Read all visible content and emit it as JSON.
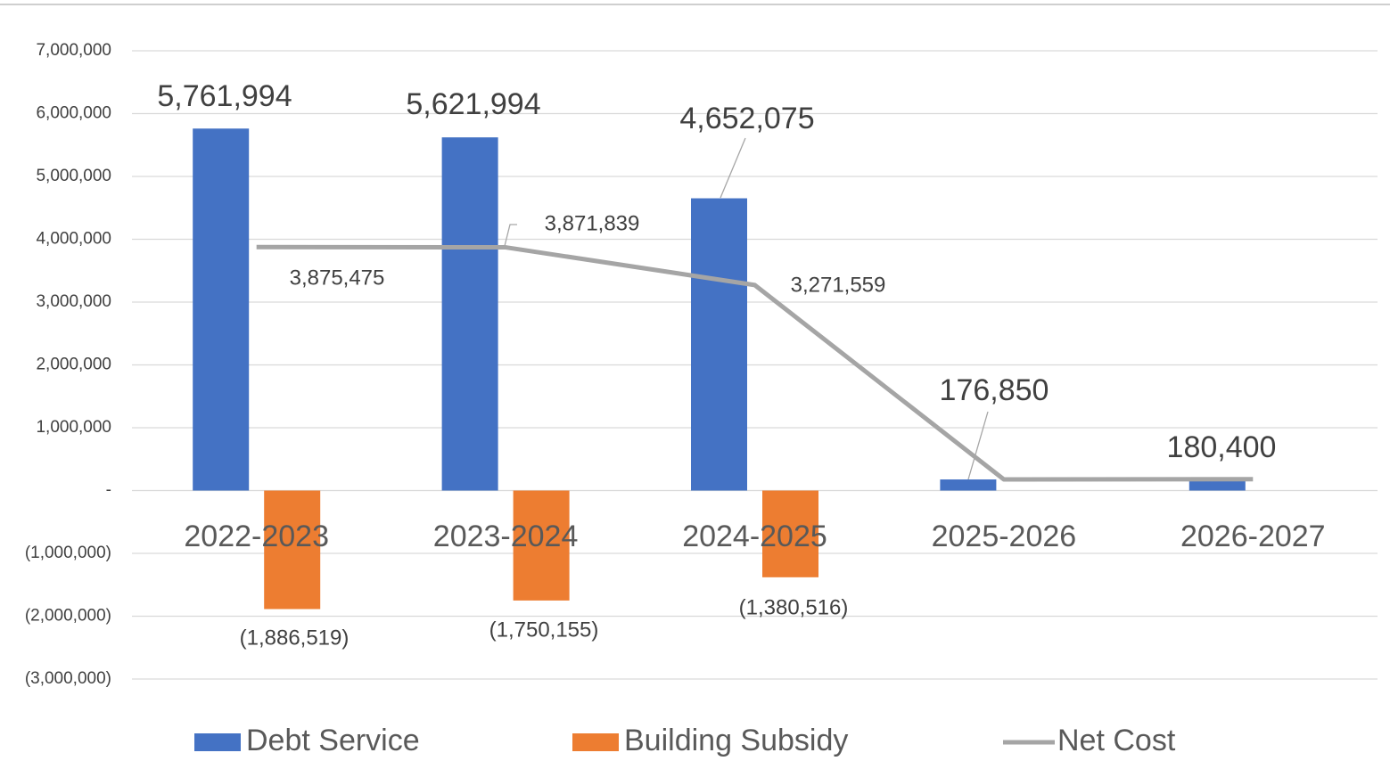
{
  "chart_data": {
    "type": "bar-line",
    "categories": [
      "2022-2023",
      "2023-2024",
      "2024-2025",
      "2025-2026",
      "2026-2027"
    ],
    "series": [
      {
        "name": "Debt Service",
        "color": "#4472c4",
        "kind": "bar",
        "values": [
          5761994,
          5621994,
          4652075,
          176850,
          180400
        ],
        "value_labels": [
          "5,761,994",
          "5,621,994",
          "4,652,075",
          "176,850",
          "180,400"
        ]
      },
      {
        "name": "Building Subsidy",
        "color": "#ed7d31",
        "kind": "bar",
        "values": [
          -1886519,
          -1750155,
          -1380516,
          null,
          null
        ],
        "value_labels": [
          "(1,886,519)",
          "(1,750,155)",
          "(1,380,516)",
          null,
          null
        ]
      },
      {
        "name": "Net Cost",
        "color": "#a5a5a5",
        "kind": "line",
        "values": [
          3875475,
          3871839,
          3271559,
          176850,
          180400
        ],
        "value_labels": [
          "3,875,475",
          "3,871,839",
          "3,271,559",
          null,
          null
        ]
      }
    ],
    "ylim": [
      -3000000,
      7000000
    ],
    "yticks": [
      {
        "value": -3000000,
        "label": "(3,000,000)"
      },
      {
        "value": -2000000,
        "label": "(2,000,000)"
      },
      {
        "value": -1000000,
        "label": "(1,000,000)"
      },
      {
        "value": 0,
        "label": "-"
      },
      {
        "value": 1000000,
        "label": "1,000,000"
      },
      {
        "value": 2000000,
        "label": "2,000,000"
      },
      {
        "value": 3000000,
        "label": "3,000,000"
      },
      {
        "value": 4000000,
        "label": "4,000,000"
      },
      {
        "value": 5000000,
        "label": "5,000,000"
      },
      {
        "value": 6000000,
        "label": "6,000,000"
      },
      {
        "value": 7000000,
        "label": "7,000,000"
      }
    ],
    "grid": true,
    "legend": "bottom"
  }
}
